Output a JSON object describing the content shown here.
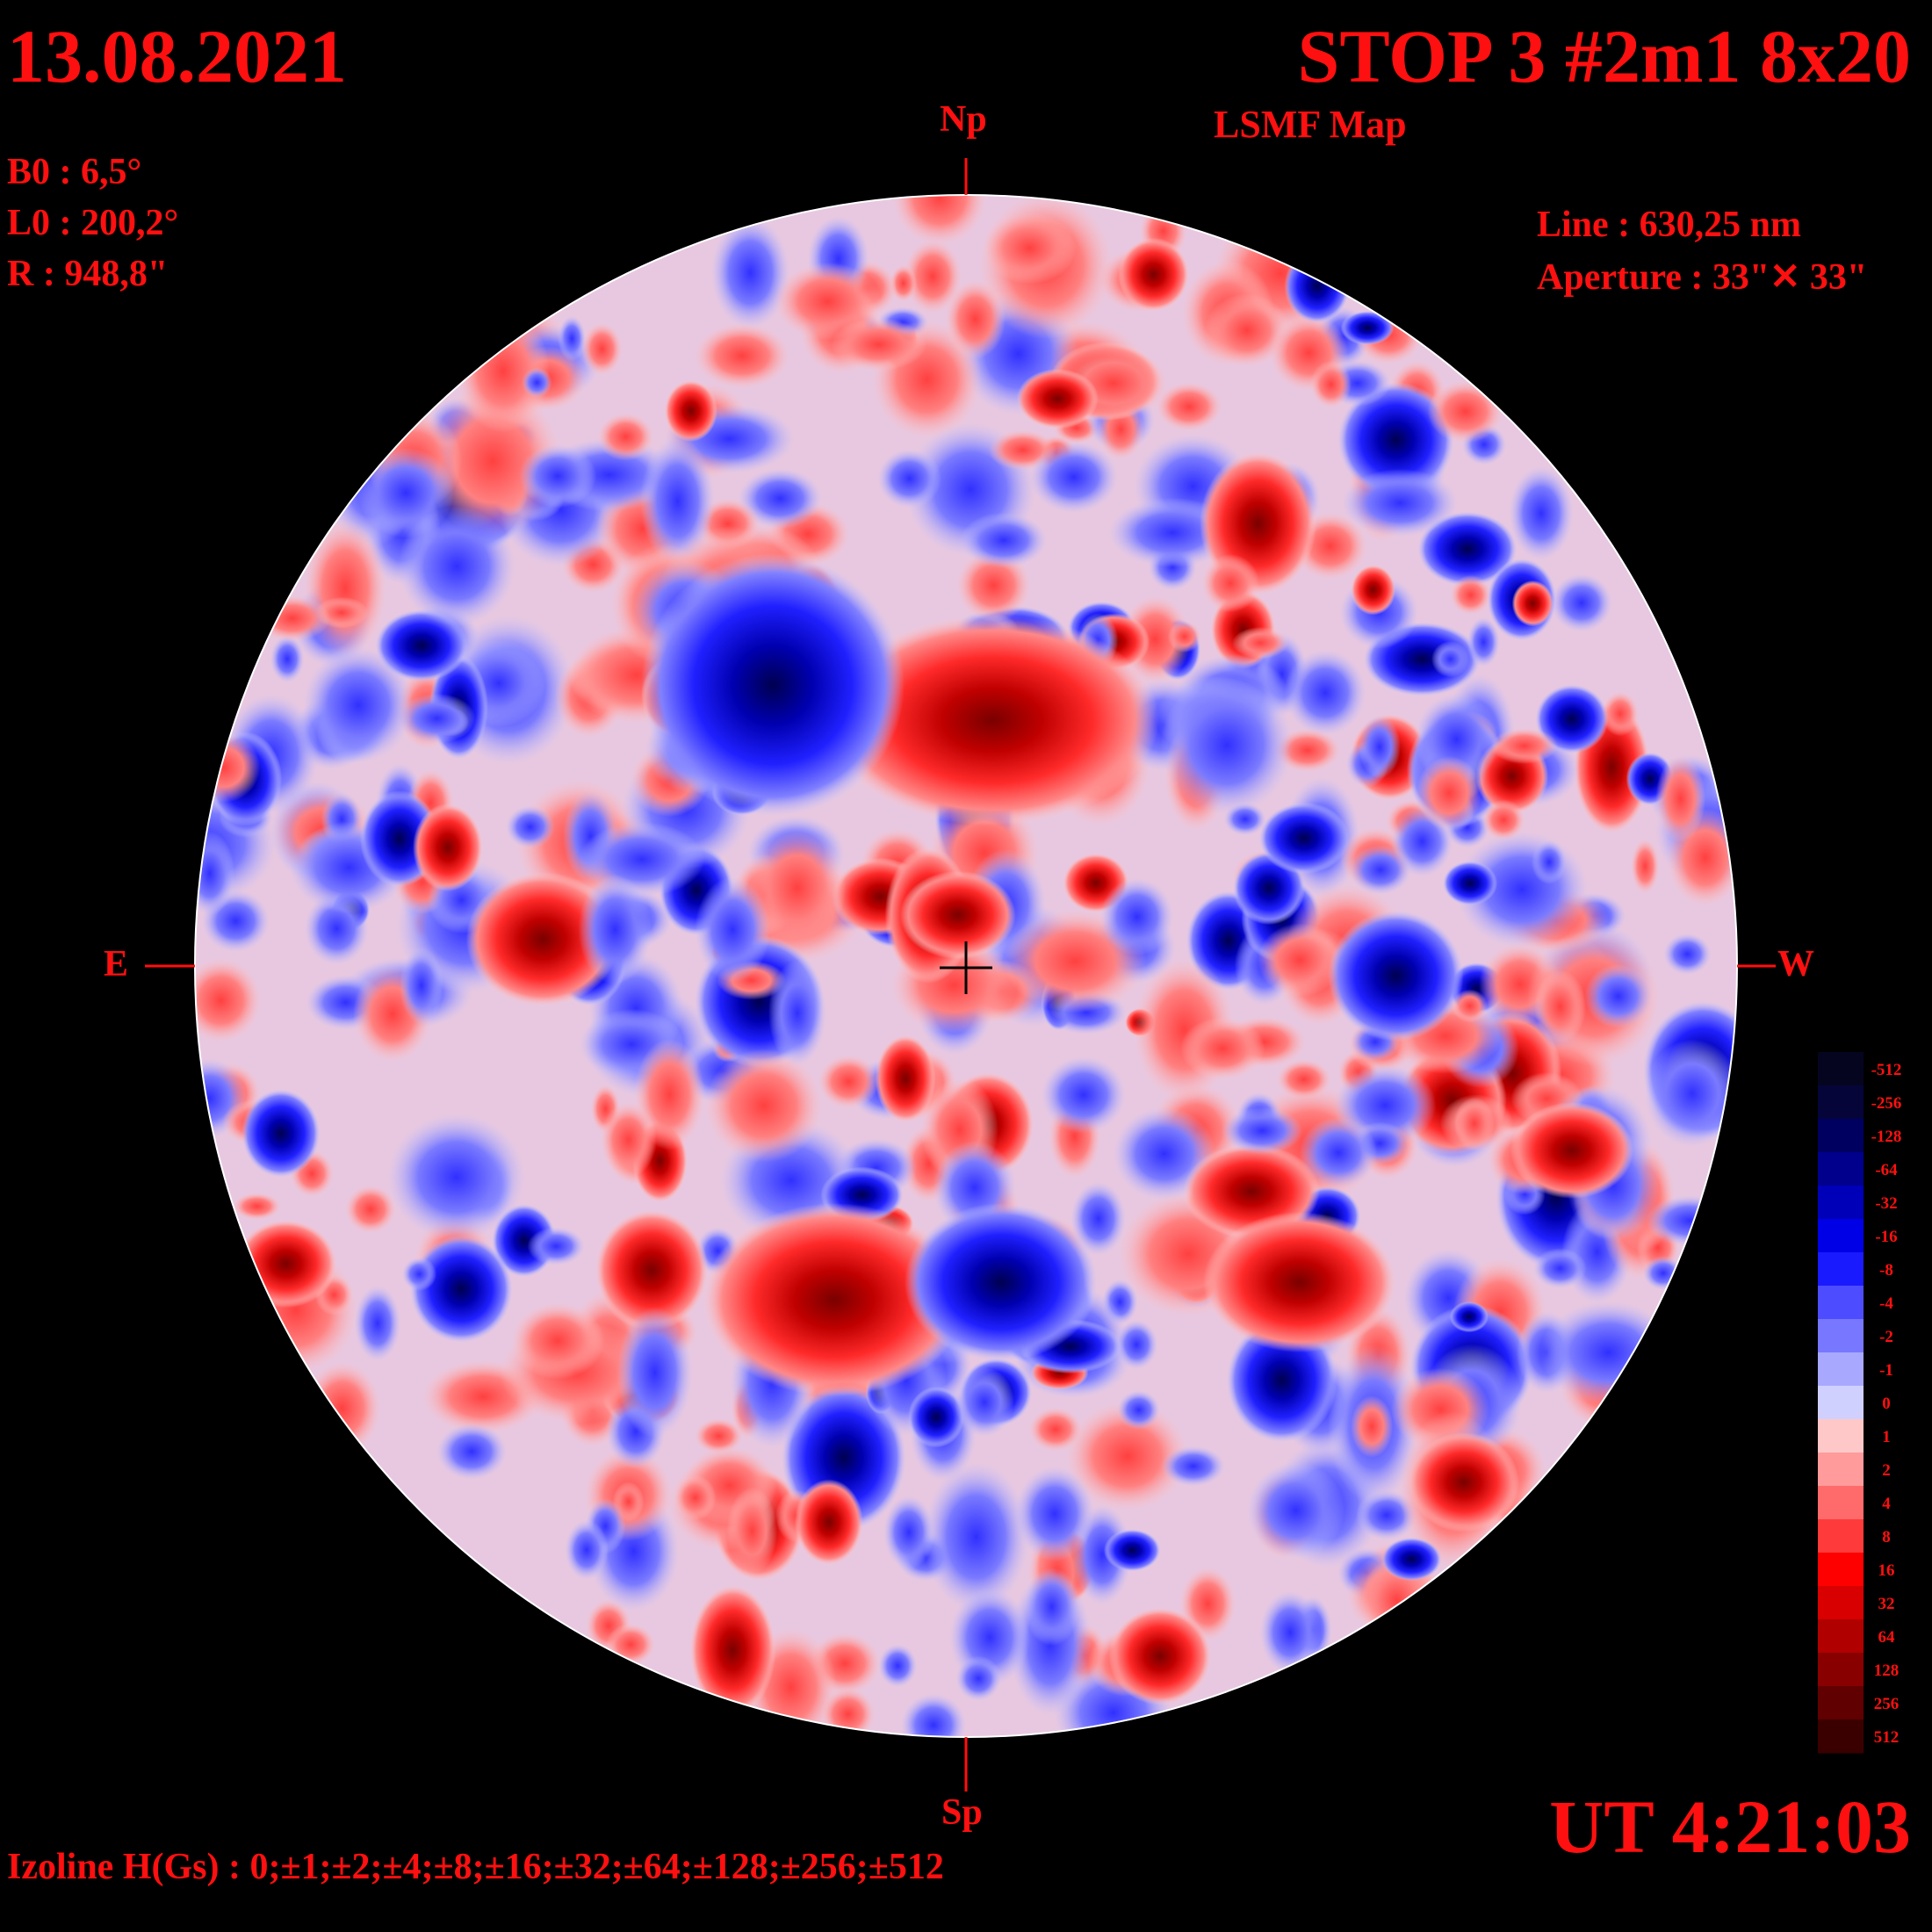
{
  "header": {
    "date": "13.08.2021",
    "title": "STOP 3 #2m1 8x20",
    "map_type": "LSMF  Map"
  },
  "parameters": {
    "b0": "B0 : 6,5°",
    "l0": "L0 : 200,2°",
    "radius": "R  : 948,8\"",
    "line": "Line :  630,25 nm",
    "aperture": "Aperture : 33\"✕ 33\""
  },
  "directions": {
    "north": "Np",
    "south": "Sp",
    "east": "E",
    "west": "W"
  },
  "footer": {
    "time": "UT 4:21:03",
    "izoline": "Izoline H(Gs) : 0;±1;±2;±4;±8;±16;±32;±64;±128;±256;±512"
  },
  "colorbar": {
    "levels": [
      {
        "label": "-512",
        "color": "#050520"
      },
      {
        "label": "-256",
        "color": "#05053a"
      },
      {
        "label": "-128",
        "color": "#000060"
      },
      {
        "label": "-64",
        "color": "#00008c"
      },
      {
        "label": "-32",
        "color": "#0000b8"
      },
      {
        "label": "-16",
        "color": "#0000e6"
      },
      {
        "label": "-8",
        "color": "#1a1aff"
      },
      {
        "label": "-4",
        "color": "#4d4dff"
      },
      {
        "label": "-2",
        "color": "#7777ff"
      },
      {
        "label": "-1",
        "color": "#a8a8ff"
      },
      {
        "label": "0",
        "color": "#d0d0ff"
      },
      {
        "label": "1",
        "color": "#ffc8c8"
      },
      {
        "label": "2",
        "color": "#ff9b9b"
      },
      {
        "label": "4",
        "color": "#ff6b6b"
      },
      {
        "label": "8",
        "color": "#ff3a3a"
      },
      {
        "label": "16",
        "color": "#ff0000"
      },
      {
        "label": "32",
        "color": "#d80000"
      },
      {
        "label": "64",
        "color": "#b00000"
      },
      {
        "label": "128",
        "color": "#880000"
      },
      {
        "label": "256",
        "color": "#600000"
      },
      {
        "label": "512",
        "color": "#3a0000"
      }
    ]
  },
  "colors": {
    "label_red": "#ff1010",
    "positive_core": "#8a0000",
    "negative_core": "#000070"
  }
}
